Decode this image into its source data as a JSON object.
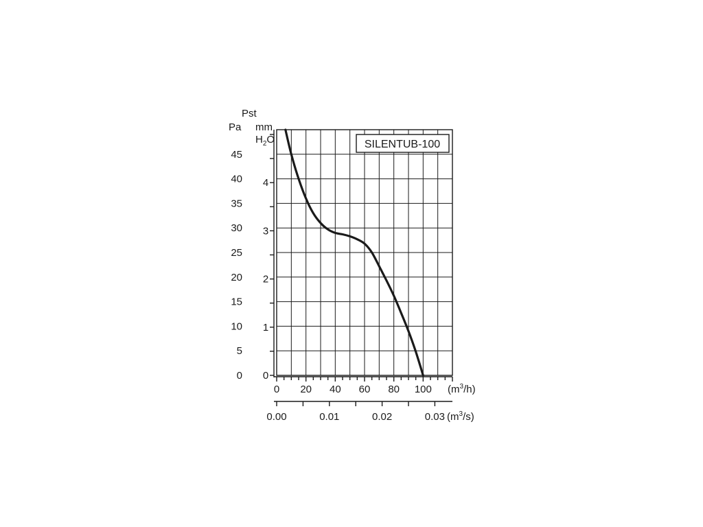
{
  "chart_data": {
    "type": "line",
    "title": "",
    "model_label": "SILENTUB-100",
    "y_title": "Pst",
    "y_left_unit": "Pa",
    "y_right_unit_line1": "mm",
    "y_right_unit_line2_main": "H",
    "y_right_unit_line2_sub": "2",
    "y_right_unit_line2_end": "O",
    "x_unit_top_open": "(m",
    "x_unit_sup": "3",
    "x_unit_top_close": "/h)",
    "x_unit_bottom_close": "/s)",
    "ylim": [
      0,
      50
    ],
    "xlim": [
      0,
      120
    ],
    "grid": true,
    "y_left_ticks": [
      0,
      5,
      10,
      15,
      20,
      25,
      30,
      35,
      40,
      45
    ],
    "y_left_tick_labels": [
      "0",
      "5",
      "10",
      "15",
      "20",
      "25",
      "30",
      "35",
      "40",
      "45"
    ],
    "y_right_ticks_mmH2O": [
      0,
      1,
      2,
      3,
      4
    ],
    "y_right_tick_labels": [
      "0",
      "1",
      "2",
      "3",
      "4"
    ],
    "x_top_ticks": [
      0,
      20,
      40,
      60,
      80,
      100
    ],
    "x_top_tick_labels": [
      "0",
      "20",
      "40",
      "60",
      "80",
      "100"
    ],
    "x_bottom_ticks_m3s": [
      0.0,
      0.01,
      0.02,
      0.03
    ],
    "x_bottom_tick_labels": [
      "0.00",
      "0.01",
      "0.02",
      "0.03"
    ],
    "series": [
      {
        "x": [
          6,
          10,
          15,
          20,
          25,
          30,
          35,
          40,
          45,
          50,
          55,
          60,
          65,
          70,
          75,
          80,
          85,
          90,
          95,
          100
        ],
        "y": [
          50,
          45,
          40,
          36,
          33,
          31,
          29.7,
          29,
          28.7,
          28.3,
          27.7,
          26.8,
          25,
          22.2,
          19.3,
          16.2,
          12.7,
          9,
          4.8,
          0
        ]
      }
    ]
  }
}
